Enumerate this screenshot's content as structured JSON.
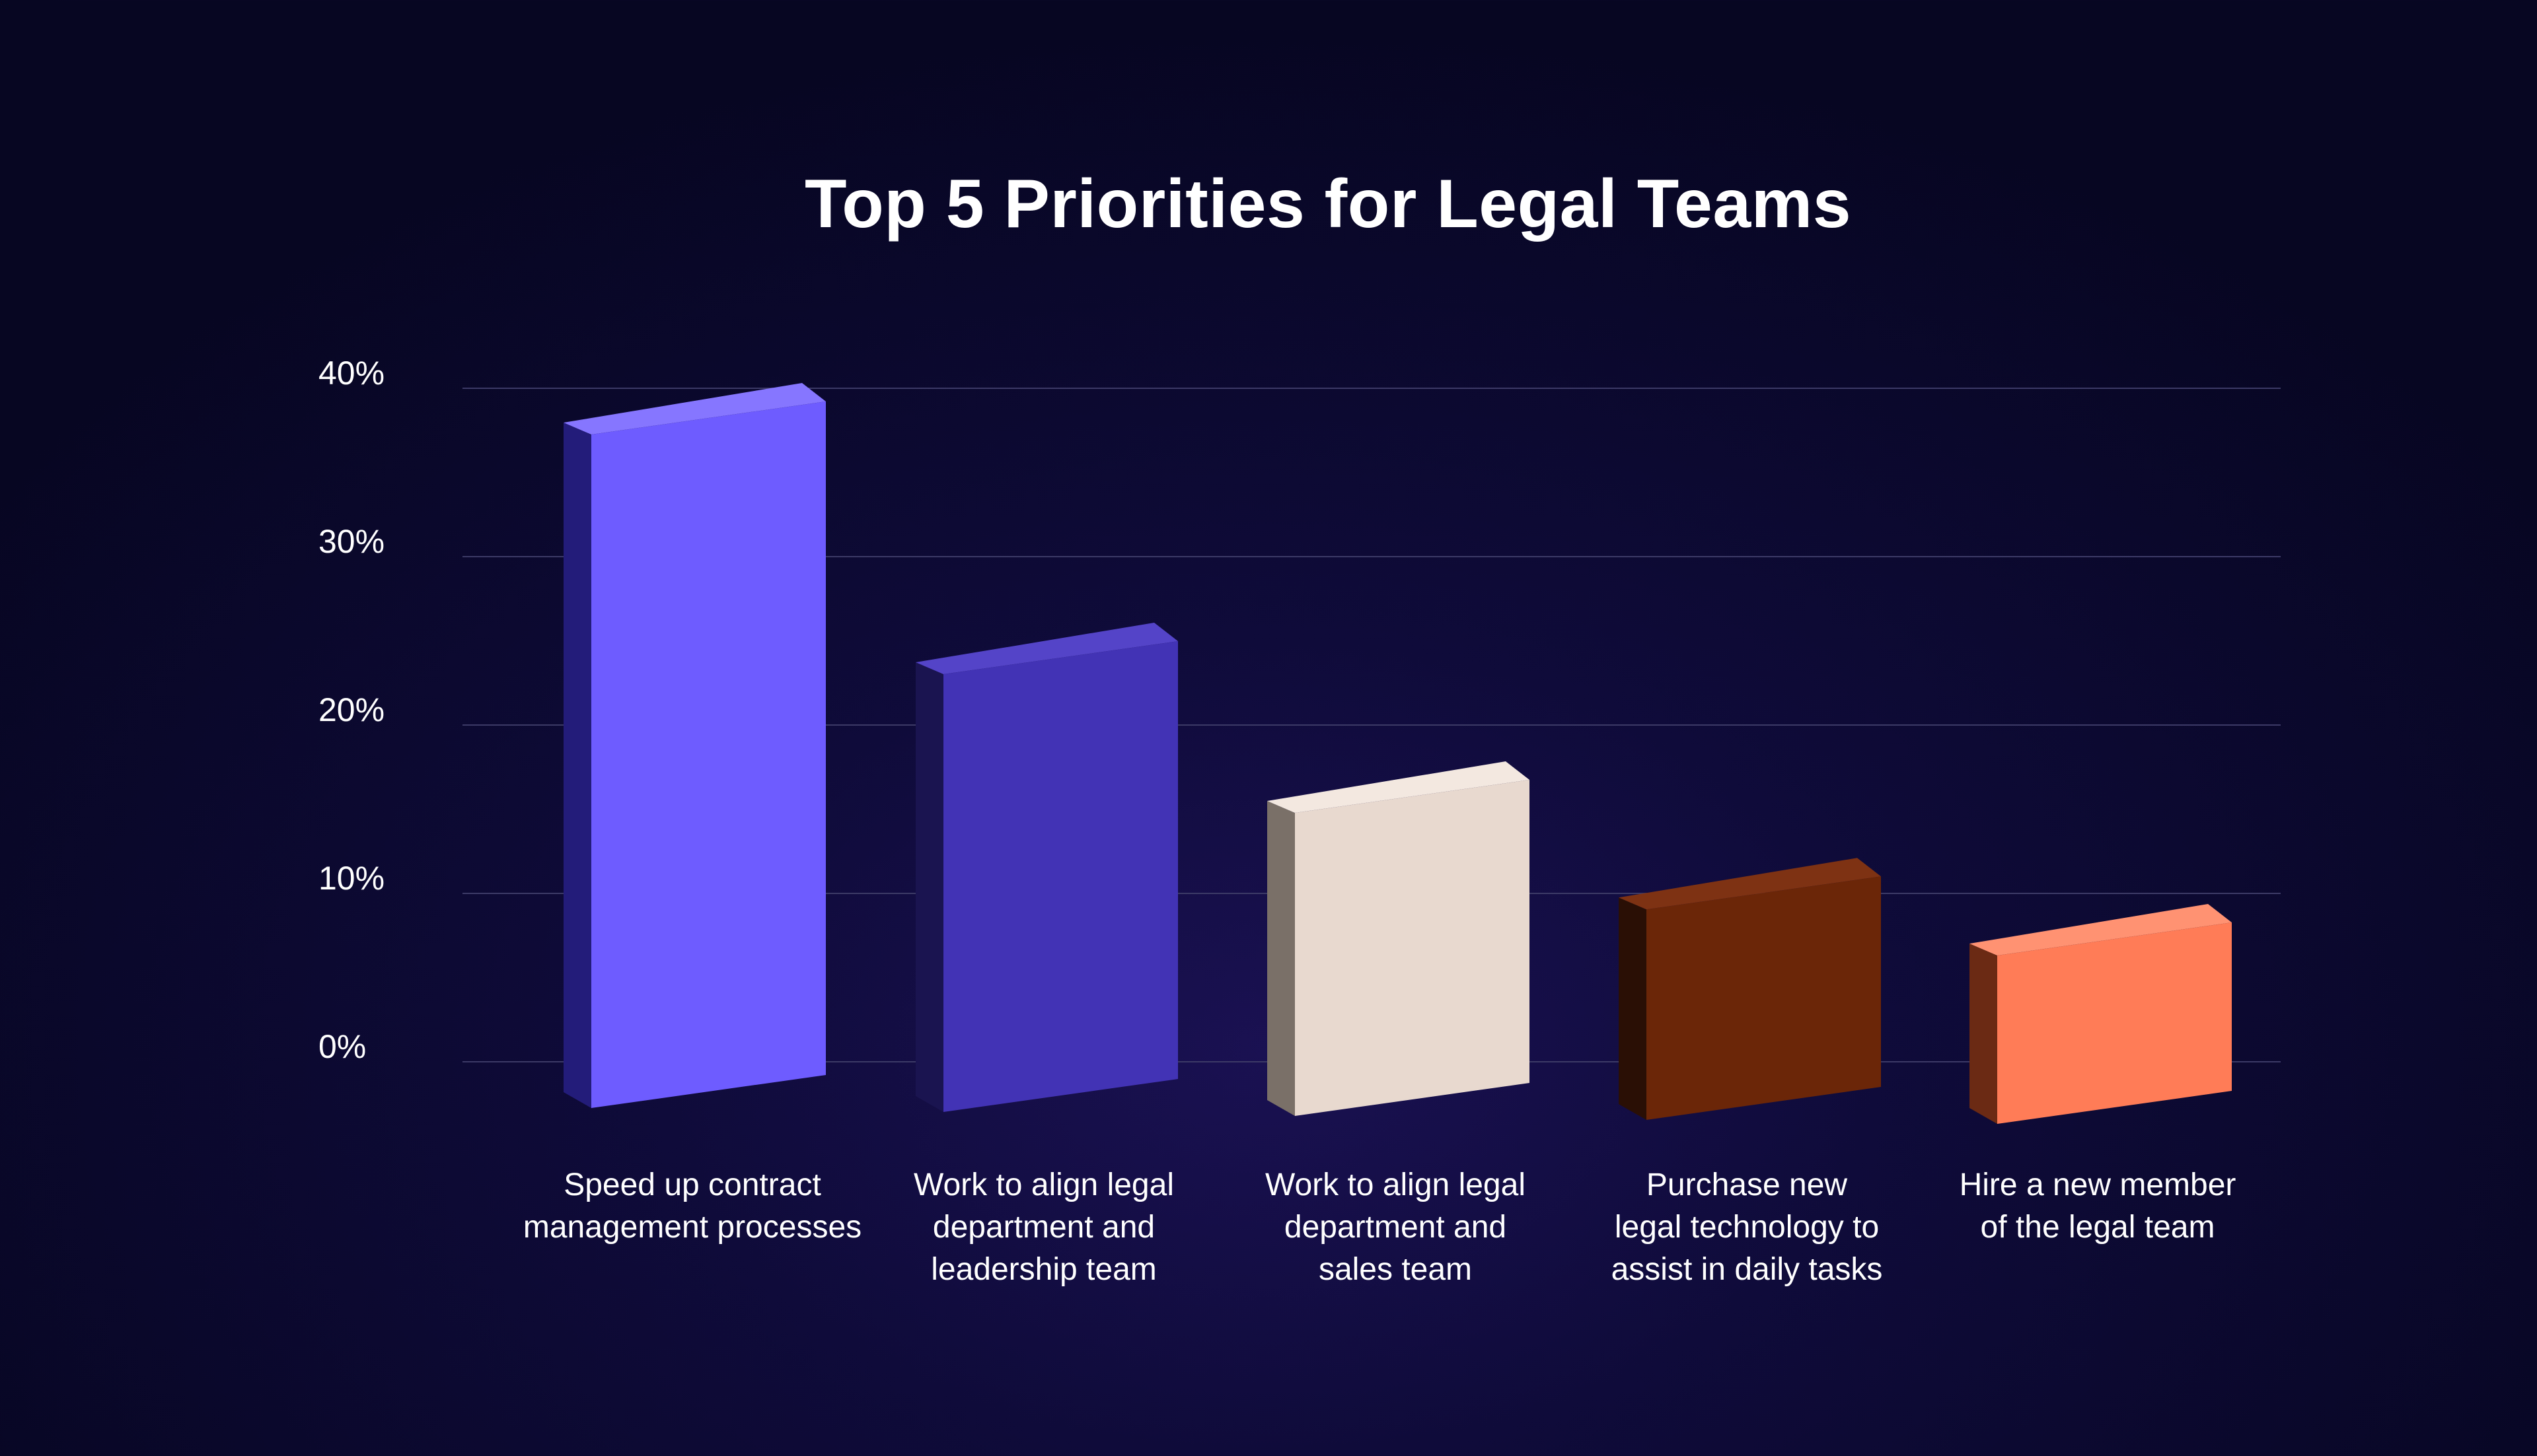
{
  "chart_data": {
    "type": "bar",
    "title": "Top 5 Priorities for Legal Teams",
    "xlabel": "",
    "ylabel": "",
    "ylim": [
      0,
      40
    ],
    "yticks": [
      "0%",
      "10%",
      "20%",
      "30%",
      "40%"
    ],
    "ytick_values": [
      0,
      10,
      20,
      30,
      40
    ],
    "grid": true,
    "style": "3d",
    "categories": [
      [
        "Speed up contract",
        "management processes"
      ],
      [
        "Work to align legal",
        "department and",
        "leadership team"
      ],
      [
        "Work to align legal",
        "department and",
        "sales team"
      ],
      [
        "Purchase new",
        "legal technology to",
        "assist in daily tasks"
      ],
      [
        "Hire a new member",
        "of the legal team"
      ]
    ],
    "values": [
      40,
      26,
      18,
      12.5,
      10
    ],
    "colors": [
      {
        "front": "#6e5cff",
        "side": "#231c7a",
        "top": "#8676ff"
      },
      {
        "front": "#4233b5",
        "side": "#1a1450",
        "top": "#5444c8"
      },
      {
        "front": "#e8d9cf",
        "side": "#7a7068",
        "top": "#f3e8e0"
      },
      {
        "front": "#6b2608",
        "side": "#2a0f05",
        "top": "#7e3213"
      },
      {
        "front": "#ff7c57",
        "side": "#6b2a14",
        "top": "#ff9272"
      }
    ],
    "grid_color": "#3c3a66"
  }
}
